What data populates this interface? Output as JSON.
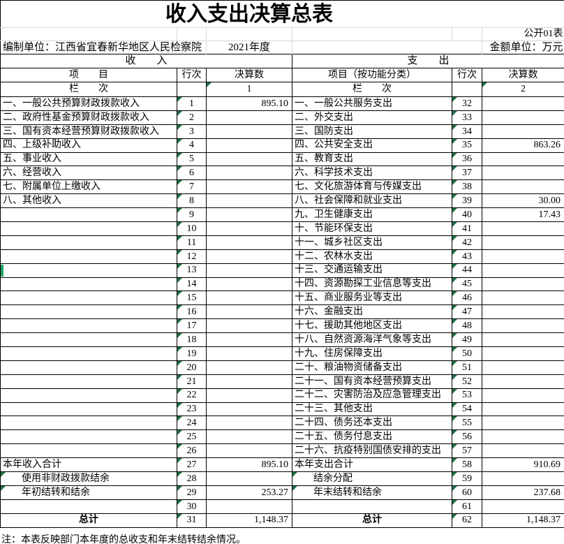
{
  "title": "收入支出决算总表",
  "meta": {
    "sheet_label": "公开01表",
    "unit_line": "编制单位：江西省宜春新华地区人民检察院",
    "year": "2021年度",
    "amount_unit": "金额单位：万元"
  },
  "sections": {
    "income": "收　　入",
    "expense": "支　　出"
  },
  "headers": {
    "item_income": "项　　目",
    "row_no": "行次",
    "amount": "决算数",
    "item_expense": "项目（按功能分类）",
    "lan": "栏　　次",
    "col1": "1",
    "col2": "2"
  },
  "note": "注：本表反映部门本年度的总收支和年末结转结余情况。",
  "colors": {
    "error_indicator_green": "#217346",
    "selection_green": "#21a366",
    "grid_line_gray": "#d8d8d8",
    "border_black": "#000000"
  },
  "rows": [
    {
      "l": {
        "item": "一、一般公共预算财政拨款收入",
        "no": "1",
        "val": "895.10"
      },
      "r": {
        "item": "一、一般公共服务支出",
        "no": "32",
        "val": ""
      }
    },
    {
      "l": {
        "item": "二、政府性基金预算财政拨款收入",
        "no": "2",
        "val": ""
      },
      "r": {
        "item": "二、外交支出",
        "no": "33",
        "val": ""
      }
    },
    {
      "l": {
        "item": "三、国有资本经营预算财政拨款收入",
        "no": "3",
        "val": ""
      },
      "r": {
        "item": "三、国防支出",
        "no": "34",
        "val": ""
      }
    },
    {
      "l": {
        "item": "四、上级补助收入",
        "no": "4",
        "val": ""
      },
      "r": {
        "item": "四、公共安全支出",
        "no": "35",
        "val": "863.26"
      }
    },
    {
      "l": {
        "item": "五、事业收入",
        "no": "5",
        "val": ""
      },
      "r": {
        "item": "五、教育支出",
        "no": "36",
        "val": ""
      }
    },
    {
      "l": {
        "item": "六、经营收入",
        "no": "6",
        "val": ""
      },
      "r": {
        "item": "六、科学技术支出",
        "no": "37",
        "val": ""
      }
    },
    {
      "l": {
        "item": "七、附属单位上缴收入",
        "no": "7",
        "val": ""
      },
      "r": {
        "item": "七、文化旅游体育与传媒支出",
        "no": "38",
        "val": ""
      }
    },
    {
      "l": {
        "item": "八、其他收入",
        "no": "8",
        "val": ""
      },
      "r": {
        "item": "八、社会保障和就业支出",
        "no": "39",
        "val": "30.00"
      }
    },
    {
      "l": {
        "item": "",
        "no": "9",
        "val": ""
      },
      "r": {
        "item": "九、卫生健康支出",
        "no": "40",
        "val": "17.43"
      }
    },
    {
      "l": {
        "item": "",
        "no": "10",
        "val": ""
      },
      "r": {
        "item": "十、节能环保支出",
        "no": "41",
        "val": ""
      }
    },
    {
      "l": {
        "item": "",
        "no": "11",
        "val": ""
      },
      "r": {
        "item": "十一、城乡社区支出",
        "no": "42",
        "val": ""
      }
    },
    {
      "l": {
        "item": "",
        "no": "12",
        "val": ""
      },
      "r": {
        "item": "十二、农林水支出",
        "no": "43",
        "val": ""
      }
    },
    {
      "l": {
        "item": "",
        "no": "13",
        "val": "",
        "marker": true
      },
      "r": {
        "item": "十三、交通运输支出",
        "no": "44",
        "val": ""
      }
    },
    {
      "l": {
        "item": "",
        "no": "14",
        "val": ""
      },
      "r": {
        "item": "十四、资源勘探工业信息等支出",
        "no": "45",
        "val": ""
      }
    },
    {
      "l": {
        "item": "",
        "no": "15",
        "val": ""
      },
      "r": {
        "item": "十五、商业服务业等支出",
        "no": "46",
        "val": ""
      }
    },
    {
      "l": {
        "item": "",
        "no": "16",
        "val": ""
      },
      "r": {
        "item": "十六、金融支出",
        "no": "47",
        "val": ""
      }
    },
    {
      "l": {
        "item": "",
        "no": "17",
        "val": ""
      },
      "r": {
        "item": "十七、援助其他地区支出",
        "no": "48",
        "val": ""
      }
    },
    {
      "l": {
        "item": "",
        "no": "18",
        "val": ""
      },
      "r": {
        "item": "十八、自然资源海洋气象等支出",
        "no": "49",
        "val": ""
      }
    },
    {
      "l": {
        "item": "",
        "no": "19",
        "val": ""
      },
      "r": {
        "item": "十九、住房保障支出",
        "no": "50",
        "val": ""
      }
    },
    {
      "l": {
        "item": "",
        "no": "20",
        "val": ""
      },
      "r": {
        "item": "二十、粮油物资储备支出",
        "no": "51",
        "val": ""
      }
    },
    {
      "l": {
        "item": "",
        "no": "21",
        "val": ""
      },
      "r": {
        "item": "二十一、国有资本经营预算支出",
        "no": "52",
        "val": ""
      }
    },
    {
      "l": {
        "item": "",
        "no": "22",
        "val": ""
      },
      "r": {
        "item": "二十二、灾害防治及应急管理支出",
        "no": "53",
        "val": ""
      }
    },
    {
      "l": {
        "item": "",
        "no": "23",
        "val": ""
      },
      "r": {
        "item": "二十三、其他支出",
        "no": "54",
        "val": ""
      }
    },
    {
      "l": {
        "item": "",
        "no": "24",
        "val": ""
      },
      "r": {
        "item": "二十四、债务还本支出",
        "no": "55",
        "val": ""
      }
    },
    {
      "l": {
        "item": "",
        "no": "25",
        "val": ""
      },
      "r": {
        "item": "二十五、债务付息支出",
        "no": "56",
        "val": ""
      }
    },
    {
      "l": {
        "item": "",
        "no": "26",
        "val": ""
      },
      "r": {
        "item": "二十六、抗疫特别国债安排的支出",
        "no": "57",
        "val": ""
      }
    },
    {
      "l": {
        "item": "本年收入合计",
        "no": "27",
        "val": "895.10"
      },
      "r": {
        "item": "本年支出合计",
        "no": "58",
        "val": "910.69"
      }
    },
    {
      "l": {
        "item": "使用非财政拨款结余",
        "no": "28",
        "val": "",
        "indent": true,
        "tri_item": true
      },
      "r": {
        "item": "结余分配",
        "no": "59",
        "val": "",
        "indent": true,
        "tri_item": true
      }
    },
    {
      "l": {
        "item": "年初结转和结余",
        "no": "29",
        "val": "253.27",
        "indent": true,
        "tri_item": true
      },
      "r": {
        "item": "年末结转和结余",
        "no": "60",
        "val": "237.68",
        "indent": true,
        "tri_item": true
      }
    },
    {
      "l": {
        "item": "",
        "no": "30",
        "val": ""
      },
      "r": {
        "item": "",
        "no": "61",
        "val": ""
      }
    },
    {
      "l": {
        "item": "总计",
        "no": "31",
        "val": "1,148.37",
        "center": true,
        "bold": true
      },
      "r": {
        "item": "总计",
        "no": "62",
        "val": "1,148.37",
        "center": true,
        "bold": true
      }
    }
  ]
}
